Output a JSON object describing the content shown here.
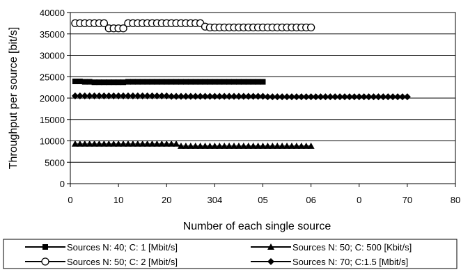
{
  "chart_data": {
    "type": "scatter",
    "xlabel": "Number of each single source",
    "ylabel": "Throughput per source [bit/s]",
    "xlim": [
      0,
      80
    ],
    "ylim": [
      0,
      40000
    ],
    "grid": "horizontal",
    "legend_placement": "bottom",
    "x_tick_labels": [
      "0",
      "10",
      "20",
      "304",
      "05",
      "06",
      "0",
      "70",
      "80"
    ],
    "y_tick_labels": [
      "0",
      "5000",
      "10000",
      "15000",
      "20000",
      "25000",
      "30000",
      "35000",
      "40000"
    ],
    "series": [
      {
        "name": "Sources N: 40; C: 1 [Mbit/s]",
        "marker": "square",
        "color": "#000000",
        "x_start": 1,
        "x_end": 40,
        "y": [
          23900,
          23900,
          23800,
          23800,
          23700,
          23700,
          23700,
          23700,
          23700,
          23700,
          23700,
          23800,
          23800,
          23800,
          23800,
          23800,
          23800,
          23800,
          23800,
          23800,
          23800,
          23800,
          23800,
          23800,
          23800,
          23800,
          23800,
          23800,
          23800,
          23800,
          23800,
          23800,
          23800,
          23800,
          23800,
          23800,
          23800,
          23800,
          23800,
          23800
        ]
      },
      {
        "name": "Sources N: 50; C: 500 [Kbit/s]",
        "marker": "triangle",
        "color": "#000000",
        "x_start": 1,
        "x_end": 50,
        "y": [
          9300,
          9300,
          9300,
          9300,
          9300,
          9300,
          9300,
          9300,
          9300,
          9300,
          9300,
          9300,
          9300,
          9300,
          9300,
          9300,
          9300,
          9300,
          9300,
          9300,
          9300,
          9300,
          8800,
          8800,
          8800,
          8800,
          8800,
          8800,
          8800,
          8800,
          8800,
          8800,
          8800,
          8800,
          8800,
          8800,
          8800,
          8800,
          8800,
          8800,
          8800,
          8800,
          8800,
          8800,
          8800,
          8800,
          8800,
          8800,
          8800,
          8800
        ]
      },
      {
        "name": "Sources N: 50; C: 2 [Mbit/s]",
        "marker": "circle",
        "color": "#000000",
        "x_start": 1,
        "x_end": 50,
        "y": [
          37500,
          37500,
          37500,
          37500,
          37500,
          37500,
          37500,
          36300,
          36300,
          36300,
          36300,
          37500,
          37500,
          37500,
          37500,
          37500,
          37500,
          37500,
          37500,
          37500,
          37500,
          37500,
          37500,
          37500,
          37500,
          37500,
          37500,
          36700,
          36500,
          36500,
          36500,
          36500,
          36500,
          36500,
          36500,
          36500,
          36500,
          36500,
          36500,
          36500,
          36500,
          36500,
          36500,
          36500,
          36500,
          36500,
          36500,
          36500,
          36500,
          36500
        ]
      },
      {
        "name": "Sources N: 70; C:1.5 [Mbit/s]",
        "marker": "diamond",
        "color": "#000000",
        "x_start": 1,
        "x_end": 70,
        "y": [
          20500,
          20500,
          20500,
          20500,
          20500,
          20500,
          20500,
          20500,
          20500,
          20500,
          20500,
          20500,
          20500,
          20500,
          20500,
          20500,
          20500,
          20500,
          20500,
          20500,
          20400,
          20400,
          20400,
          20400,
          20400,
          20400,
          20400,
          20400,
          20400,
          20400,
          20400,
          20400,
          20400,
          20400,
          20400,
          20400,
          20400,
          20400,
          20400,
          20400,
          20300,
          20300,
          20300,
          20300,
          20300,
          20300,
          20300,
          20300,
          20300,
          20300,
          20300,
          20300,
          20300,
          20300,
          20300,
          20300,
          20300,
          20300,
          20300,
          20300,
          20300,
          20300,
          20300,
          20300,
          20300,
          20300,
          20300,
          20300,
          20300,
          20300
        ]
      }
    ]
  }
}
